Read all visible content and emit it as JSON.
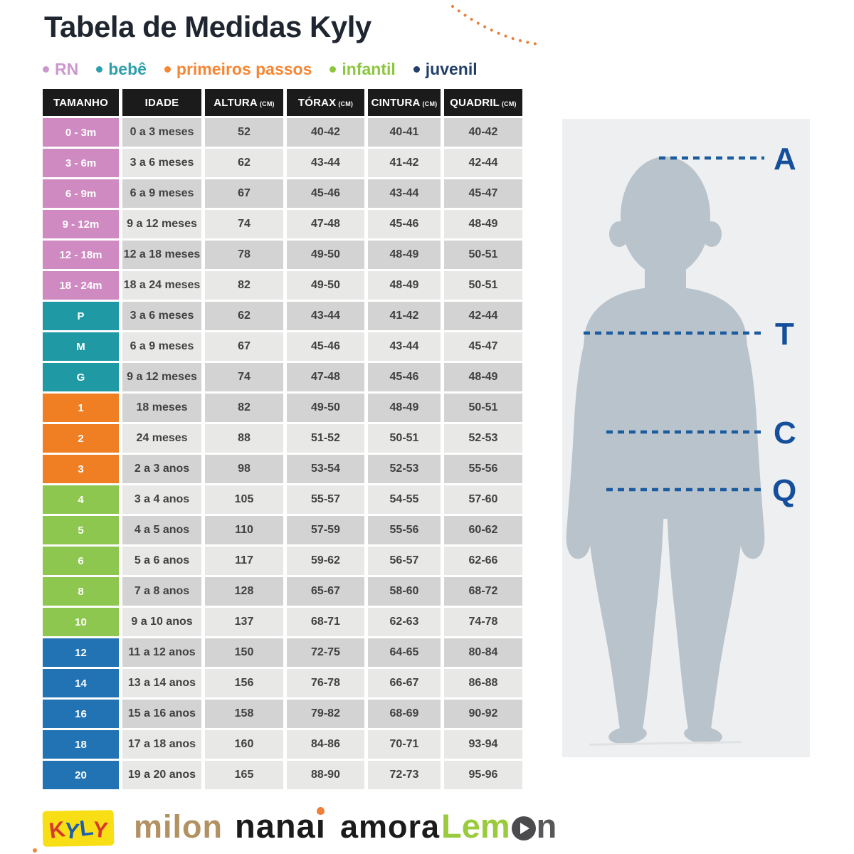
{
  "title": "Tabela de Medidas Kyly",
  "legend": [
    {
      "label": "RN",
      "color": "#cb97cf"
    },
    {
      "label": "bebê",
      "color": "#2d9fab"
    },
    {
      "label": "primeiros passos",
      "color": "#f58634"
    },
    {
      "label": "infantil",
      "color": "#8cc63f"
    },
    {
      "label": "juvenil",
      "color": "#223f6a"
    }
  ],
  "table": {
    "headers": [
      {
        "label": "TAMANHO",
        "unit": ""
      },
      {
        "label": "IDADE",
        "unit": ""
      },
      {
        "label": "ALTURA",
        "unit": "(CM)"
      },
      {
        "label": "TÓRAX",
        "unit": "(CM)"
      },
      {
        "label": "CINTURA",
        "unit": "(CM)"
      },
      {
        "label": "QUADRIL",
        "unit": "(CM)"
      }
    ],
    "category_colors": {
      "rn": "#cf8ac1",
      "bebe": "#1f99a4",
      "primeiros-passos": "#ef7f22",
      "infantil": "#8dc74f",
      "juvenil": "#2173b4"
    },
    "rows": [
      {
        "size": "0 - 3m",
        "category": "rn",
        "idade": "0 a 3 meses",
        "altura": "52",
        "torax": "40-42",
        "cintura": "40-41",
        "quadril": "40-42",
        "shade": "dark"
      },
      {
        "size": "3 - 6m",
        "category": "rn",
        "idade": "3 a 6 meses",
        "altura": "62",
        "torax": "43-44",
        "cintura": "41-42",
        "quadril": "42-44",
        "shade": "light"
      },
      {
        "size": "6 - 9m",
        "category": "rn",
        "idade": "6 a 9 meses",
        "altura": "67",
        "torax": "45-46",
        "cintura": "43-44",
        "quadril": "45-47",
        "shade": "dark"
      },
      {
        "size": "9 - 12m",
        "category": "rn",
        "idade": "9 a 12 meses",
        "altura": "74",
        "torax": "47-48",
        "cintura": "45-46",
        "quadril": "48-49",
        "shade": "light"
      },
      {
        "size": "12 - 18m",
        "category": "rn",
        "idade": "12 a 18 meses",
        "altura": "78",
        "torax": "49-50",
        "cintura": "48-49",
        "quadril": "50-51",
        "shade": "dark"
      },
      {
        "size": "18 - 24m",
        "category": "rn",
        "idade": "18 a 24 meses",
        "altura": "82",
        "torax": "49-50",
        "cintura": "48-49",
        "quadril": "50-51",
        "shade": "light"
      },
      {
        "size": "P",
        "category": "bebe",
        "idade": "3 a 6 meses",
        "altura": "62",
        "torax": "43-44",
        "cintura": "41-42",
        "quadril": "42-44",
        "shade": "dark"
      },
      {
        "size": "M",
        "category": "bebe",
        "idade": "6 a 9 meses",
        "altura": "67",
        "torax": "45-46",
        "cintura": "43-44",
        "quadril": "45-47",
        "shade": "light"
      },
      {
        "size": "G",
        "category": "bebe",
        "idade": "9 a 12 meses",
        "altura": "74",
        "torax": "47-48",
        "cintura": "45-46",
        "quadril": "48-49",
        "shade": "dark"
      },
      {
        "size": "1",
        "category": "primeiros-passos",
        "idade": "18 meses",
        "altura": "82",
        "torax": "49-50",
        "cintura": "48-49",
        "quadril": "50-51",
        "shade": "dark"
      },
      {
        "size": "2",
        "category": "primeiros-passos",
        "idade": "24 meses",
        "altura": "88",
        "torax": "51-52",
        "cintura": "50-51",
        "quadril": "52-53",
        "shade": "light"
      },
      {
        "size": "3",
        "category": "primeiros-passos",
        "idade": "2 a 3 anos",
        "altura": "98",
        "torax": "53-54",
        "cintura": "52-53",
        "quadril": "55-56",
        "shade": "dark"
      },
      {
        "size": "4",
        "category": "infantil",
        "idade": "3 a 4 anos",
        "altura": "105",
        "torax": "55-57",
        "cintura": "54-55",
        "quadril": "57-60",
        "shade": "light"
      },
      {
        "size": "5",
        "category": "infantil",
        "idade": "4 a 5 anos",
        "altura": "110",
        "torax": "57-59",
        "cintura": "55-56",
        "quadril": "60-62",
        "shade": "dark"
      },
      {
        "size": "6",
        "category": "infantil",
        "idade": "5 a 6 anos",
        "altura": "117",
        "torax": "59-62",
        "cintura": "56-57",
        "quadril": "62-66",
        "shade": "light"
      },
      {
        "size": "8",
        "category": "infantil",
        "idade": "7 a 8 anos",
        "altura": "128",
        "torax": "65-67",
        "cintura": "58-60",
        "quadril": "68-72",
        "shade": "dark"
      },
      {
        "size": "10",
        "category": "infantil",
        "idade": "9 a 10 anos",
        "altura": "137",
        "torax": "68-71",
        "cintura": "62-63",
        "quadril": "74-78",
        "shade": "light"
      },
      {
        "size": "12",
        "category": "juvenil",
        "idade": "11 a 12 anos",
        "altura": "150",
        "torax": "72-75",
        "cintura": "64-65",
        "quadril": "80-84",
        "shade": "dark"
      },
      {
        "size": "14",
        "category": "juvenil",
        "idade": "13 a 14 anos",
        "altura": "156",
        "torax": "76-78",
        "cintura": "66-67",
        "quadril": "86-88",
        "shade": "light"
      },
      {
        "size": "16",
        "category": "juvenil",
        "idade": "15 a 16 anos",
        "altura": "158",
        "torax": "79-82",
        "cintura": "68-69",
        "quadril": "90-92",
        "shade": "dark"
      },
      {
        "size": "18",
        "category": "juvenil",
        "idade": "17 a 18 anos",
        "altura": "160",
        "torax": "84-86",
        "cintura": "70-71",
        "quadril": "93-94",
        "shade": "light"
      },
      {
        "size": "20",
        "category": "juvenil",
        "idade": "19 a 20 anos",
        "altura": "165",
        "torax": "88-90",
        "cintura": "72-73",
        "quadril": "95-96",
        "shade": "light"
      }
    ]
  },
  "figure": {
    "measure_labels": [
      "A",
      "T",
      "C",
      "Q"
    ],
    "line_color": "#1b5b9e",
    "label_color": "#154f9c",
    "silhouette_color": "#b8c3cc"
  },
  "footer": {
    "brands": {
      "kyly": {
        "text": "KYLY",
        "letter_colors": [
          "#d63a2f",
          "#1d5fae",
          "#1d5fae",
          "#d63a2f"
        ],
        "bg": "#f8df15"
      },
      "milon": {
        "text": "milon",
        "color": "#b29162"
      },
      "nanai": {
        "text": "nanai",
        "color": "#1b1b1b",
        "accent": "#ef7f3a"
      },
      "amora": {
        "text": "amora",
        "color": "#1b1b1b"
      },
      "lemon": {
        "text": "Lemon",
        "color_left": "#9acb3d",
        "color_right": "#58585a",
        "circle_color": "#4b4b4d"
      }
    }
  },
  "deco": {
    "arc_color": "#e8813c"
  }
}
